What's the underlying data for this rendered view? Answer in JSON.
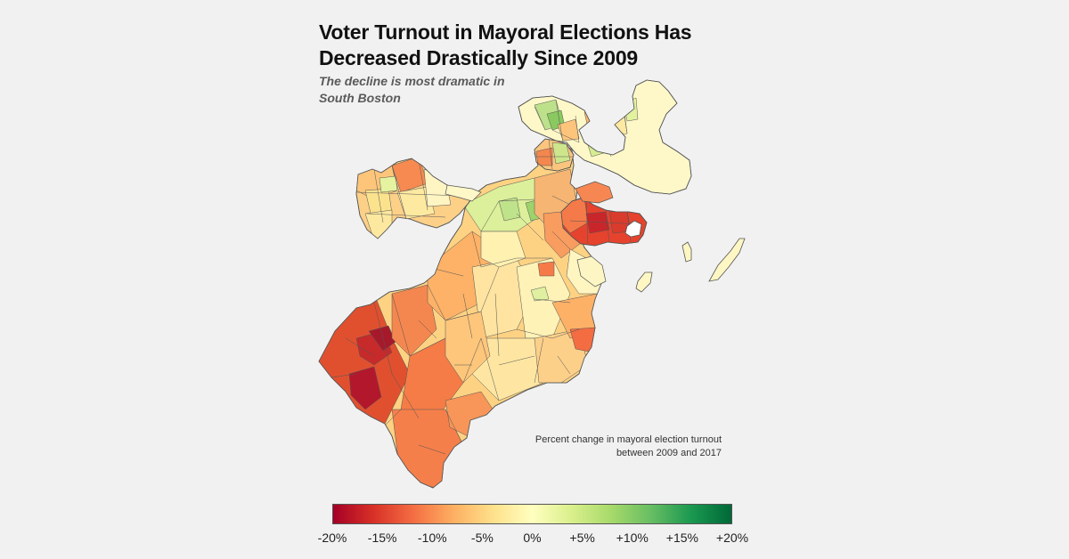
{
  "title_line1": "Voter Turnout in Mayoral Elections Has",
  "title_line2": "Decreased Drastically Since 2009",
  "subtitle_line1": "The decline is most dramatic in",
  "subtitle_line2": "South Boston",
  "legend": {
    "caption_line1": "Percent change in mayoral election turnout",
    "caption_line2": "between 2009 and 2017",
    "min_value": -20,
    "max_value": 20,
    "unit": "percent change",
    "ticks": [
      {
        "label": "-20%",
        "value": -20
      },
      {
        "label": "-15%",
        "value": -15
      },
      {
        "label": "-10%",
        "value": -10
      },
      {
        "label": "-5%",
        "value": -5
      },
      {
        "label": "0%",
        "value": 0
      },
      {
        "label": "+5%",
        "value": 5
      },
      {
        "label": "+10%",
        "value": 10
      },
      {
        "label": "+15%",
        "value": 15
      },
      {
        "label": "+20%",
        "value": 20
      }
    ],
    "color_stops": [
      "#a50026",
      "#d73027",
      "#f46d43",
      "#fdae61",
      "#fee08b",
      "#ffffbf",
      "#d9ef8b",
      "#a6d96a",
      "#66bd63",
      "#1a9850",
      "#006837"
    ]
  },
  "colors": {
    "background": "#f1f1f1",
    "border": "#555555",
    "title": "#111111",
    "subtitle": "#5a5a5a"
  }
}
